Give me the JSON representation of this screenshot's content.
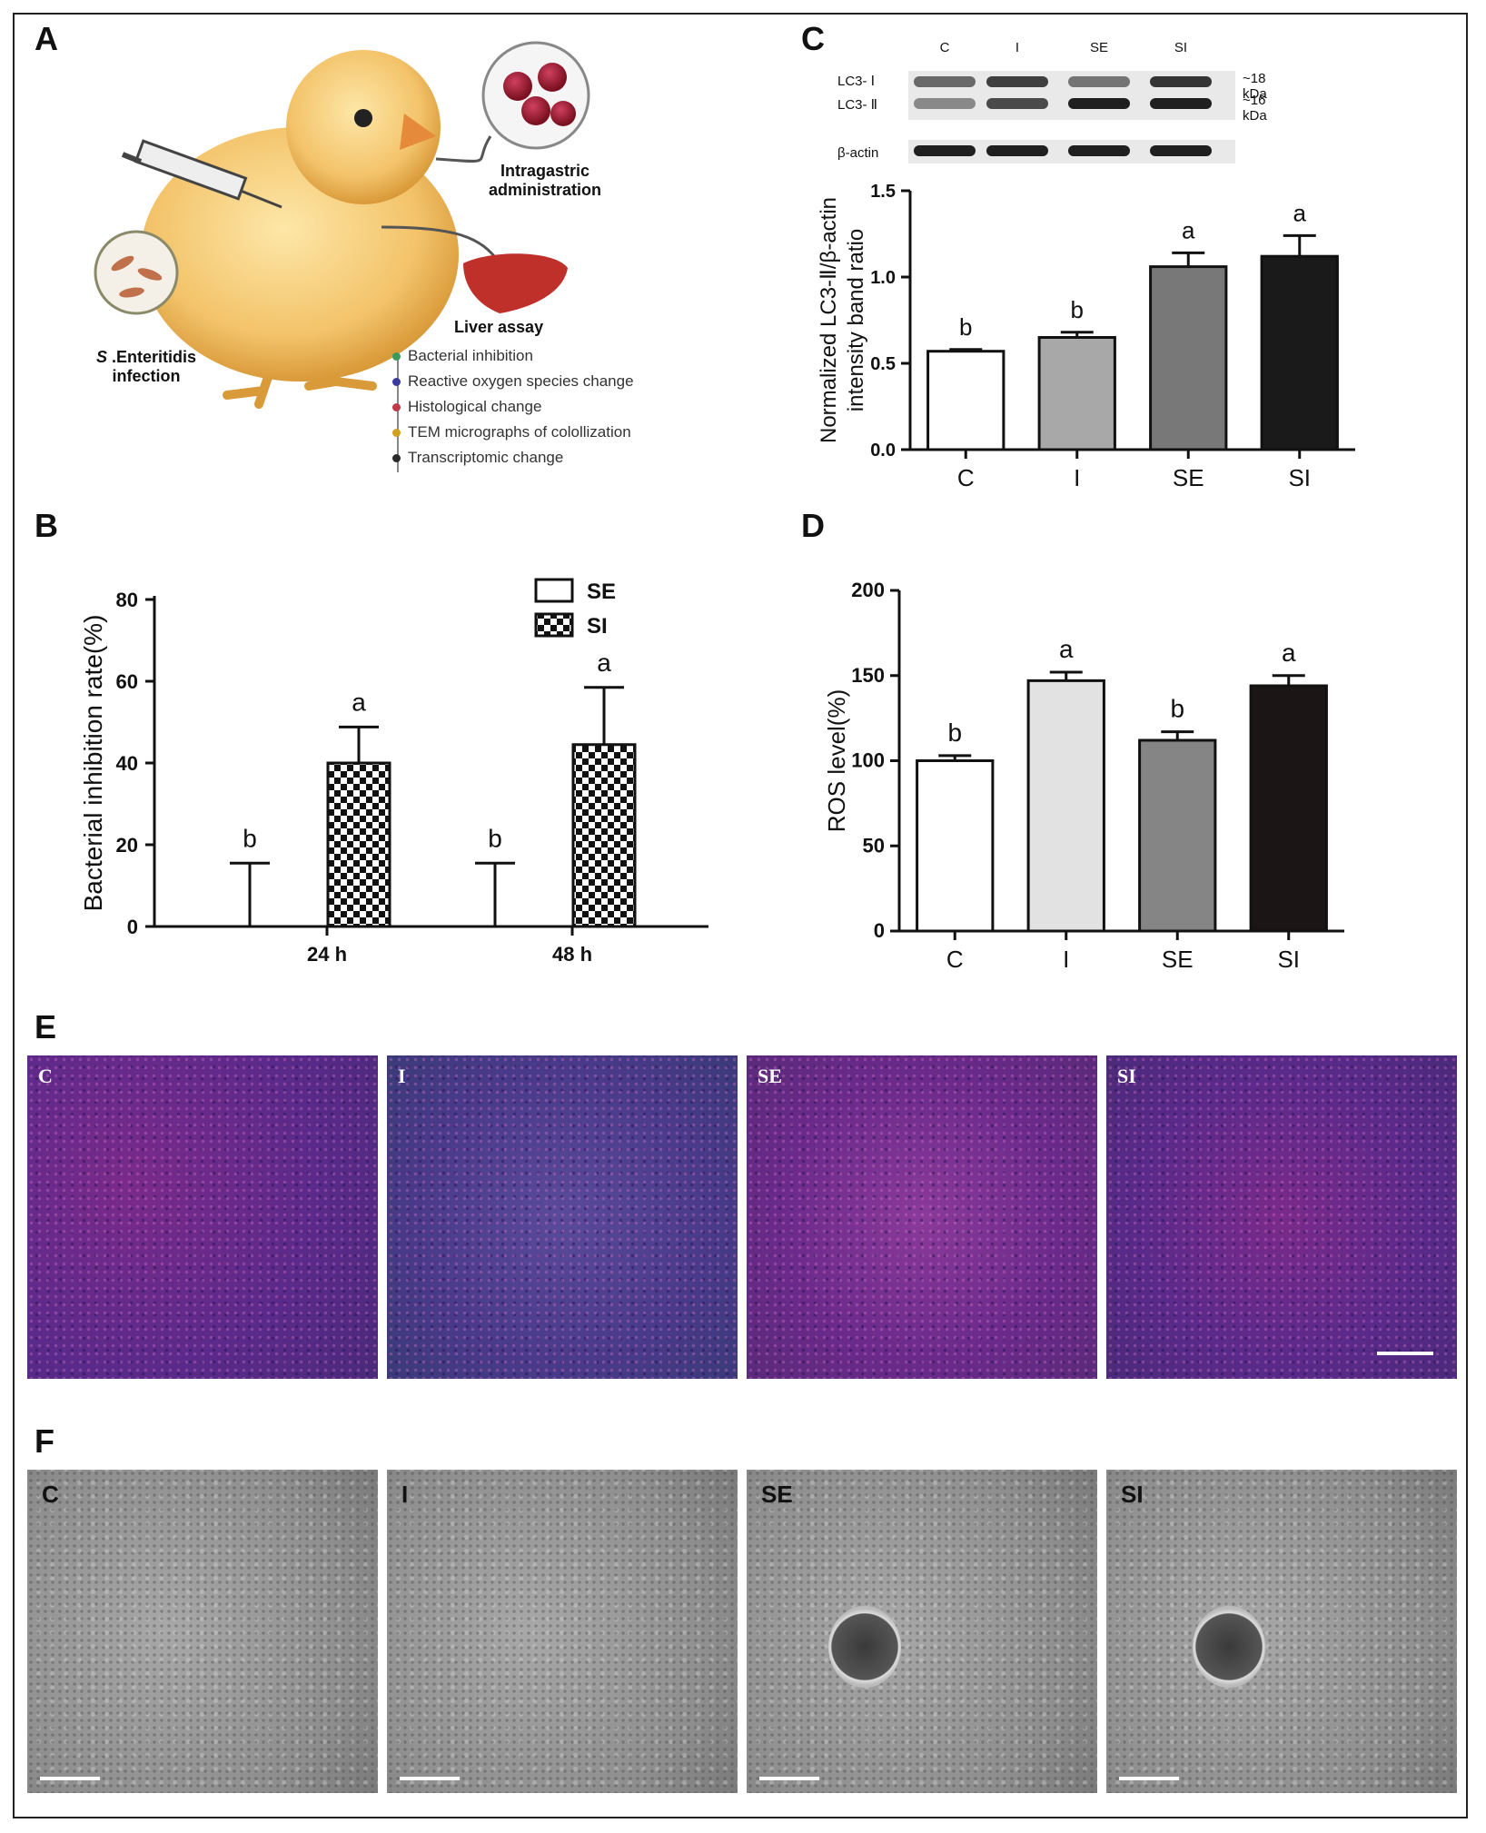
{
  "panel_letters": [
    "A",
    "B",
    "C",
    "D",
    "E",
    "F"
  ],
  "panel_a": {
    "intragastric": [
      "Intragastric",
      "administration"
    ],
    "infection": [
      " .Enteritidis",
      "infection"
    ],
    "infection_species_letter": "S",
    "liver_assay": "Liver assay",
    "assays": [
      {
        "label": "Bacterial inhibition",
        "dot": "#3a9a5a"
      },
      {
        "label": "Reactive oxygen species change",
        "dot": "#3a3aa0"
      },
      {
        "label": "Histological change",
        "dot": "#c23a4a"
      },
      {
        "label": "TEM micrographs of colollization",
        "dot": "#d4a020"
      },
      {
        "label": "Transcriptomic change",
        "dot": "#2a2a2a"
      }
    ]
  },
  "blot": {
    "lanes": [
      "C",
      "I",
      "SE",
      "SI"
    ],
    "rows": [
      "LC3- Ⅰ",
      "LC3- Ⅱ",
      "β-actin"
    ],
    "sizes": [
      "~18 kDa",
      "~16 kDa"
    ]
  },
  "chart_data": [
    {
      "panel": "B",
      "type": "bar",
      "categories": [
        "24 h",
        "48 h"
      ],
      "series": [
        {
          "name": "SE",
          "values": [
            0,
            0
          ],
          "errors": [
            15.5,
            15.5
          ],
          "letters": [
            "b",
            "b"
          ],
          "pattern": "white"
        },
        {
          "name": "SI",
          "values": [
            40,
            44.5
          ],
          "errors": [
            8.8,
            14
          ],
          "letters": [
            "a",
            "a"
          ],
          "pattern": "checker"
        }
      ],
      "ylabel": "Bacterial inhibition rate(%)",
      "ylim": [
        0,
        80
      ],
      "yticks": [
        0,
        20,
        40,
        60,
        80
      ],
      "legend": "top-right"
    },
    {
      "panel": "C",
      "type": "bar",
      "categories": [
        "C",
        "I",
        "SE",
        "SI"
      ],
      "values": [
        0.57,
        0.65,
        1.06,
        1.12
      ],
      "errors": [
        0.01,
        0.03,
        0.08,
        0.12
      ],
      "letters": [
        "b",
        "b",
        "a",
        "a"
      ],
      "colors": [
        "#ffffff",
        "#a8a8a8",
        "#787878",
        "#1a1a1a"
      ],
      "ylabel": "Normalized LC3-Ⅱ/β-actin intensity band ratio",
      "ylim": [
        0,
        1.5
      ],
      "yticks": [
        "0.0",
        "0.5",
        "1.0",
        "1.5"
      ]
    },
    {
      "panel": "D",
      "type": "bar",
      "categories": [
        "C",
        "I",
        "SE",
        "SI"
      ],
      "values": [
        100,
        147,
        112,
        144
      ],
      "errors": [
        3,
        5,
        5,
        6
      ],
      "letters": [
        "b",
        "a",
        "b",
        "a"
      ],
      "colors": [
        "#ffffff",
        "#e2e2e2",
        "#858585",
        "#1c1515"
      ],
      "ylabel": "ROS level(%)",
      "ylim": [
        0,
        200
      ],
      "yticks": [
        0,
        50,
        100,
        150,
        200
      ]
    }
  ],
  "histology": {
    "labels": [
      "C",
      "I",
      "SE",
      "SI"
    ]
  },
  "tem": {
    "labels": [
      "C",
      "I",
      "SE",
      "SI"
    ]
  }
}
